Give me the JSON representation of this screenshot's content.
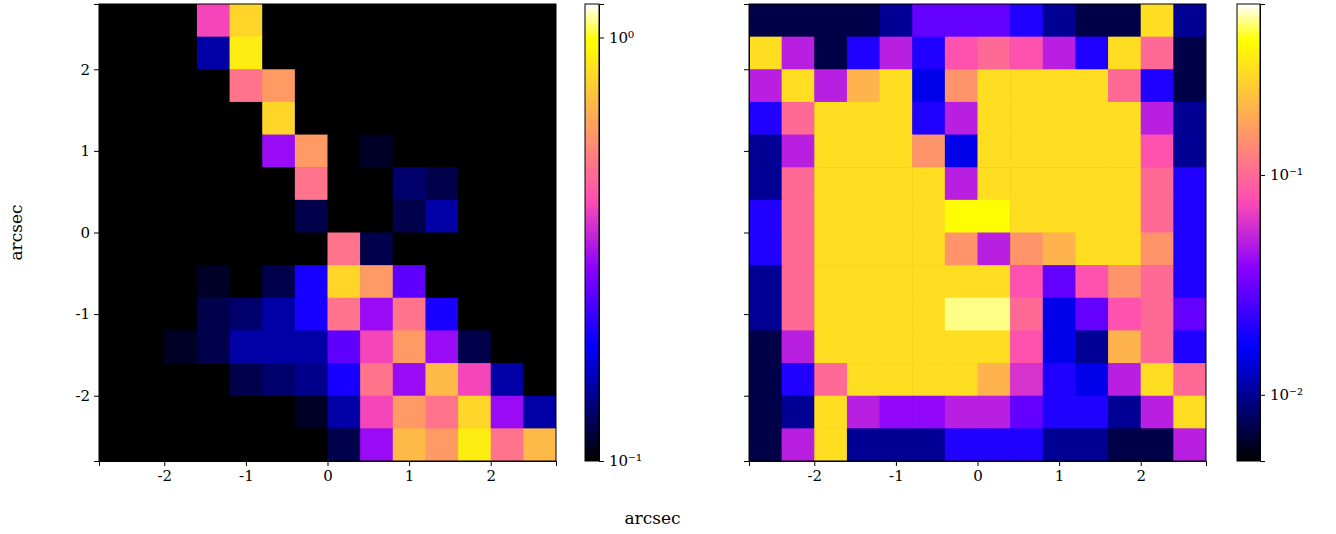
{
  "chart_data": [
    {
      "type": "heatmap",
      "x_label": "arcsec",
      "y_label": "arcsec",
      "xlim": [
        -2.8,
        2.8
      ],
      "ylim": [
        -2.8,
        2.8
      ],
      "xticks": [
        -2,
        -1,
        0,
        1,
        2
      ],
      "yticks": [
        -2,
        -1,
        0,
        1,
        2
      ],
      "x": [
        -2.6,
        -2.2,
        -1.8,
        -1.4,
        -1.0,
        -0.6,
        -0.2,
        0.2,
        0.6,
        1.0,
        1.4,
        1.8,
        2.2,
        2.6
      ],
      "y": [
        2.6,
        2.2,
        1.8,
        1.4,
        1.0,
        0.6,
        0.2,
        -0.2,
        -0.6,
        -1.0,
        -1.4,
        -1.8,
        -2.2,
        -2.6
      ],
      "z": [
        [
          0.05,
          0.05,
          0.05,
          0.4,
          0.8,
          0.05,
          0.05,
          0.05,
          0.05,
          0.05,
          0.05,
          0.05,
          0.05,
          0.05
        ],
        [
          0.05,
          0.05,
          0.05,
          0.15,
          0.9,
          0.05,
          0.05,
          0.05,
          0.05,
          0.05,
          0.05,
          0.05,
          0.05,
          0.05
        ],
        [
          0.05,
          0.05,
          0.05,
          0.05,
          0.5,
          0.6,
          0.05,
          0.05,
          0.05,
          0.05,
          0.05,
          0.05,
          0.05,
          0.05
        ],
        [
          0.05,
          0.05,
          0.05,
          0.05,
          0.05,
          0.8,
          0.05,
          0.05,
          0.05,
          0.05,
          0.05,
          0.05,
          0.05,
          0.05
        ],
        [
          0.05,
          0.05,
          0.05,
          0.05,
          0.05,
          0.3,
          0.6,
          0.05,
          0.11,
          0.05,
          0.05,
          0.05,
          0.05,
          0.05
        ],
        [
          0.05,
          0.05,
          0.05,
          0.05,
          0.05,
          0.05,
          0.5,
          0.05,
          0.05,
          0.13,
          0.12,
          0.05,
          0.05,
          0.05
        ],
        [
          0.05,
          0.05,
          0.05,
          0.05,
          0.05,
          0.05,
          0.12,
          0.05,
          0.05,
          0.12,
          0.15,
          0.05,
          0.05,
          0.05
        ],
        [
          0.05,
          0.05,
          0.05,
          0.05,
          0.05,
          0.05,
          0.1,
          0.5,
          0.12,
          0.05,
          0.05,
          0.05,
          0.05,
          0.05
        ],
        [
          0.05,
          0.05,
          0.05,
          0.11,
          0.05,
          0.12,
          0.2,
          0.8,
          0.6,
          0.25,
          0.05,
          0.05,
          0.05,
          0.05
        ],
        [
          0.05,
          0.05,
          0.05,
          0.12,
          0.13,
          0.15,
          0.2,
          0.5,
          0.3,
          0.5,
          0.2,
          0.05,
          0.05,
          0.05
        ],
        [
          0.05,
          0.05,
          0.11,
          0.12,
          0.15,
          0.15,
          0.15,
          0.25,
          0.4,
          0.6,
          0.3,
          0.12,
          0.05,
          0.05
        ],
        [
          0.05,
          0.05,
          0.05,
          0.05,
          0.12,
          0.13,
          0.14,
          0.2,
          0.5,
          0.3,
          0.7,
          0.4,
          0.15,
          0.05
        ],
        [
          0.05,
          0.05,
          0.05,
          0.05,
          0.05,
          0.05,
          0.11,
          0.15,
          0.4,
          0.6,
          0.5,
          0.8,
          0.3,
          0.15
        ],
        [
          0.05,
          0.05,
          0.05,
          0.05,
          0.05,
          0.05,
          0.05,
          0.12,
          0.3,
          0.7,
          0.6,
          0.9,
          0.5,
          0.7
        ]
      ],
      "colorbar": {
        "range": [
          0.1,
          1.2
        ],
        "log": true,
        "ticks": [
          {
            "value": 1,
            "label": "10⁰"
          },
          {
            "value": 0.1,
            "label": "10⁻¹"
          }
        ]
      }
    },
    {
      "type": "heatmap",
      "tick_labels": "x",
      "xlim": [
        -2.8,
        2.8
      ],
      "ylim": [
        -2.8,
        2.8
      ],
      "xticks": [
        -2,
        -1,
        0,
        1,
        2
      ],
      "yticks": [
        -2,
        -1,
        0,
        1,
        2
      ],
      "x": [
        -2.6,
        -2.2,
        -1.8,
        -1.4,
        -1.0,
        -0.6,
        -0.2,
        0.2,
        0.6,
        1.0,
        1.4,
        1.8,
        2.2,
        2.6
      ],
      "y": [
        2.6,
        2.2,
        1.8,
        1.4,
        1.0,
        0.6,
        0.2,
        -0.2,
        -0.6,
        -1.0,
        -1.4,
        -1.8,
        -2.2,
        -2.6
      ],
      "z": [
        [
          0.007,
          0.007,
          0.007,
          0.007,
          0.01,
          0.03,
          0.03,
          0.03,
          0.02,
          0.01,
          0.007,
          0.007,
          0.3,
          0.01
        ],
        [
          0.3,
          0.05,
          0.007,
          0.02,
          0.05,
          0.02,
          0.08,
          0.1,
          0.08,
          0.05,
          0.02,
          0.3,
          0.1,
          0.007
        ],
        [
          0.05,
          0.3,
          0.05,
          0.2,
          0.3,
          0.015,
          0.15,
          0.3,
          0.3,
          0.3,
          0.3,
          0.1,
          0.02,
          0.007
        ],
        [
          0.02,
          0.1,
          0.3,
          0.3,
          0.3,
          0.02,
          0.05,
          0.3,
          0.3,
          0.3,
          0.3,
          0.3,
          0.05,
          0.01
        ],
        [
          0.01,
          0.05,
          0.3,
          0.3,
          0.3,
          0.15,
          0.015,
          0.3,
          0.3,
          0.3,
          0.3,
          0.3,
          0.08,
          0.01
        ],
        [
          0.01,
          0.1,
          0.3,
          0.3,
          0.3,
          0.3,
          0.05,
          0.3,
          0.3,
          0.3,
          0.3,
          0.3,
          0.1,
          0.02
        ],
        [
          0.02,
          0.1,
          0.3,
          0.3,
          0.3,
          0.3,
          0.4,
          0.4,
          0.3,
          0.3,
          0.3,
          0.3,
          0.1,
          0.02
        ],
        [
          0.02,
          0.1,
          0.3,
          0.3,
          0.3,
          0.3,
          0.15,
          0.05,
          0.15,
          0.2,
          0.3,
          0.3,
          0.15,
          0.02
        ],
        [
          0.01,
          0.1,
          0.3,
          0.3,
          0.3,
          0.3,
          0.3,
          0.3,
          0.08,
          0.03,
          0.08,
          0.15,
          0.1,
          0.02
        ],
        [
          0.01,
          0.1,
          0.3,
          0.3,
          0.3,
          0.3,
          0.5,
          0.5,
          0.1,
          0.015,
          0.03,
          0.08,
          0.1,
          0.03
        ],
        [
          0.007,
          0.05,
          0.3,
          0.3,
          0.3,
          0.3,
          0.3,
          0.3,
          0.08,
          0.015,
          0.01,
          0.2,
          0.1,
          0.02
        ],
        [
          0.007,
          0.02,
          0.1,
          0.3,
          0.3,
          0.3,
          0.3,
          0.2,
          0.06,
          0.02,
          0.015,
          0.05,
          0.3,
          0.1
        ],
        [
          0.007,
          0.01,
          0.3,
          0.05,
          0.04,
          0.04,
          0.05,
          0.05,
          0.03,
          0.02,
          0.02,
          0.01,
          0.05,
          0.3
        ],
        [
          0.007,
          0.05,
          0.3,
          0.01,
          0.01,
          0.01,
          0.02,
          0.02,
          0.02,
          0.01,
          0.01,
          0.007,
          0.007,
          0.05
        ]
      ],
      "colorbar": {
        "range": [
          0.005,
          0.6
        ],
        "log": true,
        "ticks": [
          {
            "value": 0.1,
            "label": "10⁻¹"
          },
          {
            "value": 0.01,
            "label": "10⁻²"
          }
        ]
      }
    }
  ]
}
